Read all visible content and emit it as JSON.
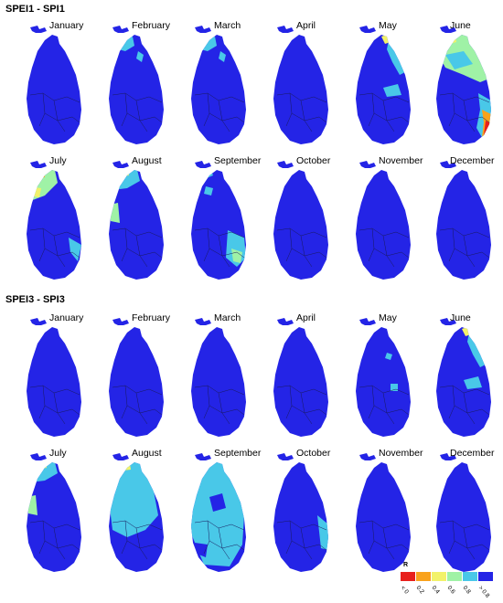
{
  "panels": [
    {
      "title": "SPEI1 - SPI1",
      "months": [
        {
          "label": "January",
          "pattern": "uniform"
        },
        {
          "label": "February",
          "pattern": "north-patches"
        },
        {
          "label": "March",
          "pattern": "north-patches"
        },
        {
          "label": "April",
          "pattern": "uniform"
        },
        {
          "label": "May",
          "pattern": "east-light"
        },
        {
          "label": "June",
          "pattern": "north-east-strong"
        },
        {
          "label": "July",
          "pattern": "north-west-strong"
        },
        {
          "label": "August",
          "pattern": "north-west-mid"
        },
        {
          "label": "September",
          "pattern": "south-east-mid"
        },
        {
          "label": "October",
          "pattern": "uniform"
        },
        {
          "label": "November",
          "pattern": "uniform"
        },
        {
          "label": "December",
          "pattern": "uniform"
        }
      ]
    },
    {
      "title": "SPEI3 - SPI3",
      "months": [
        {
          "label": "January",
          "pattern": "uniform"
        },
        {
          "label": "February",
          "pattern": "uniform"
        },
        {
          "label": "March",
          "pattern": "uniform"
        },
        {
          "label": "April",
          "pattern": "uniform"
        },
        {
          "label": "May",
          "pattern": "east-dots"
        },
        {
          "label": "June",
          "pattern": "east-light"
        },
        {
          "label": "July",
          "pattern": "north-west-mid"
        },
        {
          "label": "August",
          "pattern": "widespread-light"
        },
        {
          "label": "September",
          "pattern": "widespread-strong"
        },
        {
          "label": "October",
          "pattern": "east-edge"
        },
        {
          "label": "November",
          "pattern": "uniform"
        },
        {
          "label": "December",
          "pattern": "uniform"
        }
      ]
    }
  ],
  "legend": {
    "title": "R",
    "classes": [
      {
        "label": "< 0",
        "color": "#e8201c"
      },
      {
        "label": "0.2",
        "color": "#f9a21c"
      },
      {
        "label": "0.4",
        "color": "#f2f26a"
      },
      {
        "label": "0.6",
        "color": "#9ff2a6"
      },
      {
        "label": "0.8",
        "color": "#49c8e8"
      },
      {
        "label": "> 0.8",
        "color": "#2424e6"
      }
    ]
  }
}
